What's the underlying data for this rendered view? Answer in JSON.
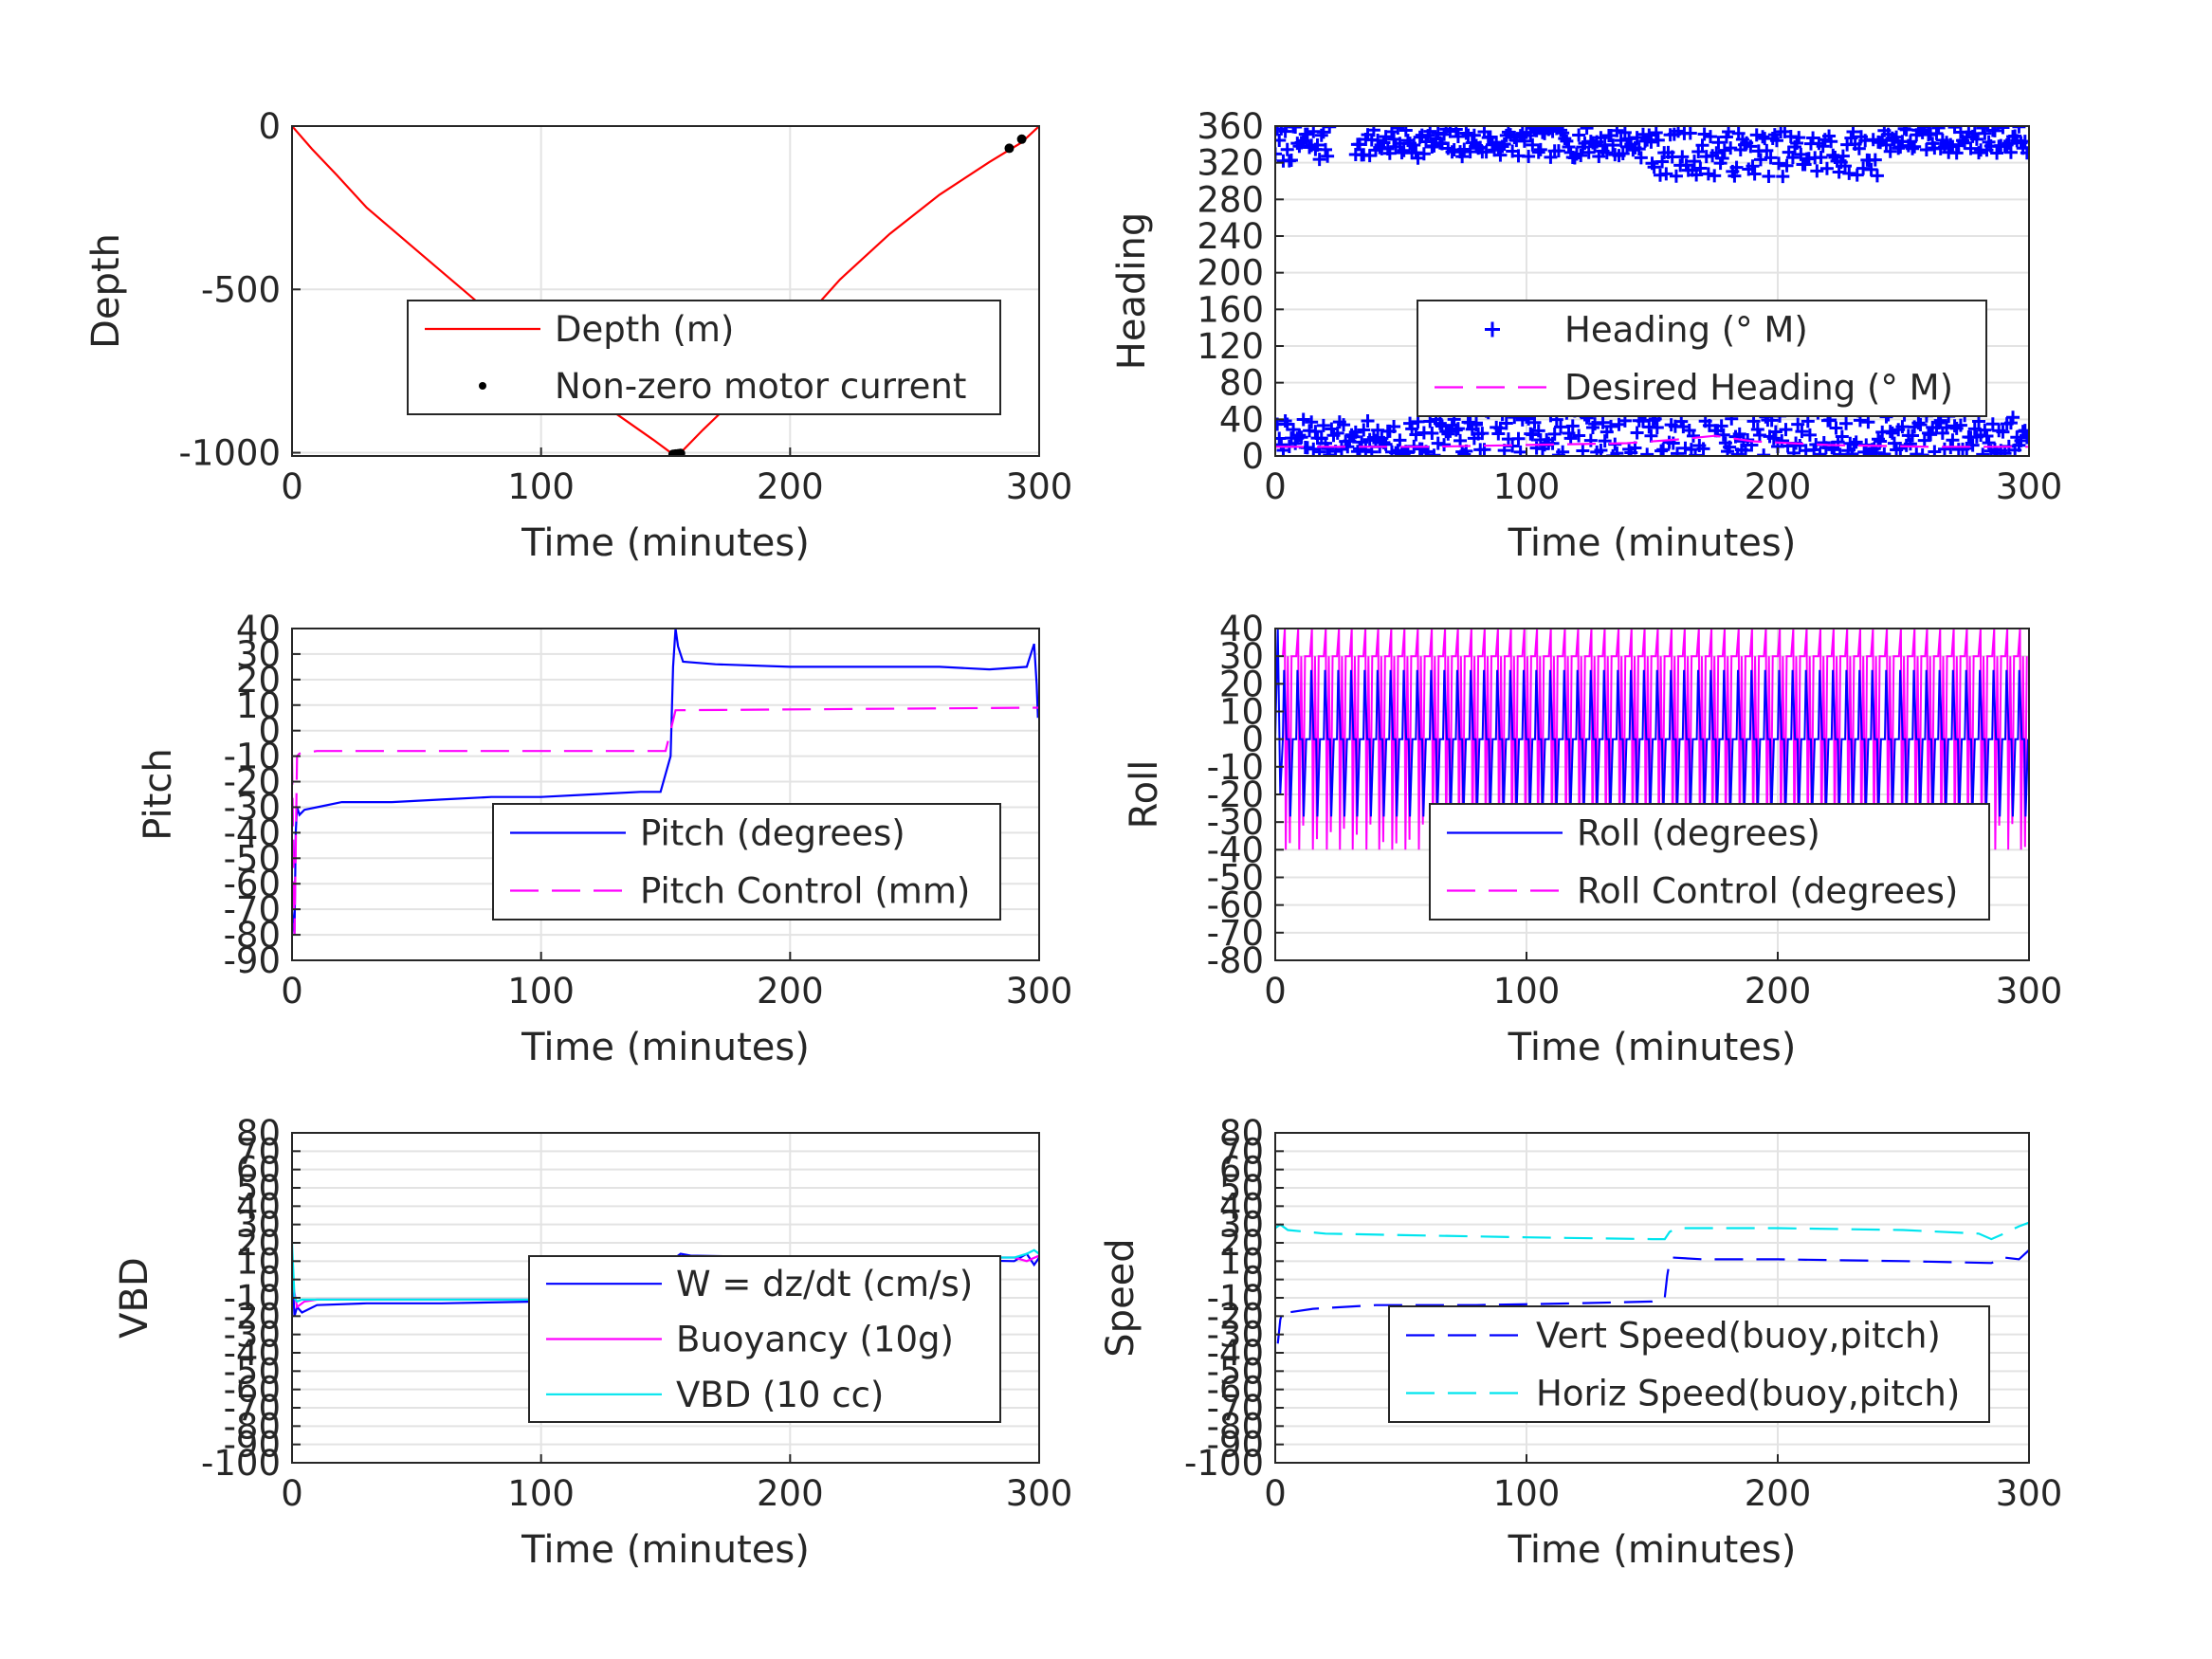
{
  "colors": {
    "red": "#ff0000",
    "blue": "#0000ff",
    "magenta": "#ff00ff",
    "cyan": "#00e5ee",
    "black": "#000000",
    "grid": "#e3e3e3",
    "axis": "#262626"
  },
  "chart_data": [
    {
      "id": "depth",
      "type": "line",
      "xlabel": "Time (minutes)",
      "ylabel": "Depth",
      "xlim": [
        0,
        300
      ],
      "ylim": [
        -1010,
        0
      ],
      "xticks": [
        0,
        100,
        200,
        300
      ],
      "yticks": [
        0,
        -500,
        -1000
      ],
      "yticklabels": [
        "0",
        "-500",
        "-1000"
      ],
      "grid": true,
      "legend_position": "lower-right",
      "series": [
        {
          "name": "Depth (m)",
          "style": "solid",
          "color": "#ff0000",
          "x": [
            0,
            8,
            18,
            30,
            50,
            70,
            90,
            110,
            130,
            145,
            153,
            156,
            165,
            180,
            200,
            220,
            240,
            260,
            280,
            293,
            300
          ],
          "y": [
            0,
            -70,
            -150,
            -250,
            -380,
            -510,
            -640,
            -760,
            -880,
            -960,
            -1005,
            -1000,
            -930,
            -820,
            -640,
            -470,
            -330,
            -210,
            -110,
            -50,
            0
          ]
        },
        {
          "name": "Non-zero motor current",
          "style": "dots",
          "color": "#000000",
          "x": [
            153,
            154,
            155,
            156,
            288,
            293
          ],
          "y": [
            -1005,
            -1004,
            -1003,
            -1002,
            -68,
            -40
          ]
        }
      ]
    },
    {
      "id": "heading",
      "type": "scatter",
      "xlabel": "Time (minutes)",
      "ylabel": "Heading",
      "xlim": [
        0,
        300
      ],
      "ylim": [
        0,
        360
      ],
      "xticks": [
        0,
        100,
        200,
        300
      ],
      "yticks": [
        0,
        40,
        80,
        120,
        160,
        200,
        240,
        280,
        320,
        360
      ],
      "grid": true,
      "legend_position": "center-right",
      "series": [
        {
          "name": "Heading (° M)",
          "style": "plus",
          "color": "#0000ff",
          "bands": [
            {
              "x0": 0,
              "x1": 22,
              "ylo": 320,
              "yhi": 360
            },
            {
              "x0": 32,
              "x1": 150,
              "ylo": 325,
              "yhi": 358
            },
            {
              "x0": 150,
              "x1": 240,
              "ylo": 305,
              "yhi": 355
            },
            {
              "x0": 240,
              "x1": 300,
              "ylo": 330,
              "yhi": 360
            },
            {
              "x0": 0,
              "x1": 80,
              "ylo": 0,
              "yhi": 40
            },
            {
              "x0": 80,
              "x1": 240,
              "ylo": 0,
              "yhi": 60
            },
            {
              "x0": 240,
              "x1": 300,
              "ylo": 0,
              "yhi": 45
            }
          ]
        },
        {
          "name": "Desired Heading (° M)",
          "style": "dashed",
          "color": "#ff00ff",
          "x": [
            0,
            60,
            100,
            140,
            160,
            175,
            190,
            220,
            260,
            300
          ],
          "y": [
            10,
            10,
            12,
            14,
            18,
            22,
            16,
            12,
            10,
            10
          ]
        }
      ]
    },
    {
      "id": "pitch",
      "type": "line",
      "xlabel": "Time (minutes)",
      "ylabel": "Pitch",
      "xlim": [
        0,
        300
      ],
      "ylim": [
        -90,
        40
      ],
      "xticks": [
        0,
        100,
        200,
        300
      ],
      "yticks": [
        40,
        30,
        20,
        10,
        0,
        -10,
        -20,
        -30,
        -40,
        -50,
        -60,
        -70,
        -80,
        -90
      ],
      "grid": true,
      "legend_position": "lower-right",
      "series": [
        {
          "name": "Pitch (degrees)",
          "style": "solid",
          "color": "#0000ff",
          "x": [
            0,
            1,
            1.5,
            2,
            3,
            5,
            10,
            20,
            40,
            60,
            80,
            100,
            120,
            140,
            148,
            152,
            153,
            154,
            155,
            157,
            170,
            200,
            230,
            260,
            280,
            295,
            298,
            299,
            299.5
          ],
          "y": [
            -70,
            -80,
            -40,
            -30,
            -33,
            -31,
            -30,
            -28,
            -28,
            -27,
            -26,
            -26,
            -25,
            -24,
            -24,
            -10,
            25,
            40,
            33,
            27,
            26,
            25,
            25,
            25,
            24,
            25,
            34,
            18,
            5
          ]
        },
        {
          "name": "Pitch Control (mm)",
          "style": "dashed",
          "color": "#ff00ff",
          "x": [
            0,
            1,
            2,
            3,
            10,
            150,
            152,
            154,
            300
          ],
          "y": [
            -10,
            -80,
            -10,
            -9,
            -8,
            -8,
            0,
            8,
            9
          ]
        }
      ]
    },
    {
      "id": "roll",
      "type": "line",
      "xlabel": "Time (minutes)",
      "ylabel": "Roll",
      "xlim": [
        0,
        300
      ],
      "ylim": [
        -80,
        40
      ],
      "xticks": [
        0,
        100,
        200,
        300
      ],
      "yticks": [
        40,
        30,
        20,
        10,
        0,
        -10,
        -20,
        -30,
        -40,
        -50,
        -60,
        -70,
        -80
      ],
      "grid": true,
      "legend_position": "lower-right",
      "series": [
        {
          "name": "Roll (degrees)",
          "style": "solid",
          "color": "#0000ff"
        },
        {
          "name": "Roll Control (degrees)",
          "style": "dashed",
          "color": "#ff00ff"
        }
      ]
    },
    {
      "id": "vbd",
      "type": "line",
      "xlabel": "Time (minutes)",
      "ylabel": "VBD",
      "xlim": [
        0,
        300
      ],
      "ylim": [
        -100,
        80
      ],
      "xticks": [
        0,
        100,
        200,
        300
      ],
      "yticks": [
        80,
        70,
        60,
        50,
        40,
        30,
        20,
        10,
        0,
        -10,
        -20,
        -30,
        -40,
        -50,
        -60,
        -70,
        -80,
        -90,
        -100
      ],
      "grid": true,
      "legend_position": "lower-right",
      "series": [
        {
          "name": "W = dz/dt (cm/s)",
          "style": "solid",
          "color": "#0000ff",
          "x": [
            0,
            1,
            2,
            4,
            10,
            30,
            60,
            100,
            140,
            150,
            152,
            154,
            156,
            160,
            200,
            250,
            290,
            295,
            298,
            300
          ],
          "y": [
            5,
            -20,
            -15,
            -18,
            -14,
            -13,
            -13,
            -12,
            -12,
            -12,
            0,
            12,
            14,
            13,
            12,
            11,
            10,
            14,
            8,
            12
          ]
        },
        {
          "name": "Buoyancy (10g)",
          "style": "solid",
          "color": "#ff00ff",
          "x": [
            0,
            2,
            5,
            10,
            30,
            100,
            150,
            152,
            155,
            200,
            250,
            290,
            295,
            300
          ],
          "y": [
            0,
            -15,
            -12,
            -11,
            -11,
            -11,
            -10,
            0,
            12,
            12,
            12,
            12,
            10,
            13
          ]
        },
        {
          "name": "VBD (10 cc)",
          "style": "solid",
          "color": "#00e5ee",
          "x": [
            0,
            1,
            2,
            4,
            150,
            152,
            155,
            290,
            295,
            298,
            300
          ],
          "y": [
            20,
            -10,
            -12,
            -11,
            -11,
            0,
            12,
            12,
            14,
            16,
            14
          ]
        }
      ]
    },
    {
      "id": "speed",
      "type": "line",
      "xlabel": "Time (minutes)",
      "ylabel": "Speed",
      "xlim": [
        0,
        300
      ],
      "ylim": [
        -100,
        80
      ],
      "xticks": [
        0,
        100,
        200,
        300
      ],
      "yticks": [
        80,
        70,
        60,
        50,
        40,
        30,
        20,
        10,
        0,
        -10,
        -20,
        -30,
        -40,
        -50,
        -60,
        -70,
        -80,
        -90,
        -100
      ],
      "grid": true,
      "legend_position": "lower-right",
      "series": [
        {
          "name": "Vert Speed(buoy,pitch)",
          "style": "dashed",
          "color": "#0000ff",
          "x": [
            1,
            2,
            3,
            5,
            15,
            40,
            80,
            120,
            150,
            155,
            156,
            157,
            158,
            170,
            200,
            250,
            285,
            290,
            296,
            300
          ],
          "y": [
            -35,
            -22,
            -17,
            -18,
            -16,
            -14,
            -14,
            -13,
            -12,
            -10,
            2,
            10,
            12,
            11,
            11,
            10,
            9,
            12,
            11,
            16
          ]
        },
        {
          "name": "Horiz Speed(buoy,pitch)",
          "style": "dashed",
          "color": "#00e5ee",
          "x": [
            0,
            2,
            5,
            20,
            60,
            100,
            150,
            155,
            157,
            160,
            200,
            250,
            280,
            285,
            290,
            296,
            300
          ],
          "y": [
            28,
            30,
            27,
            25,
            24,
            23,
            22,
            22,
            26,
            28,
            28,
            27,
            25,
            22,
            25,
            29,
            31
          ]
        }
      ]
    }
  ]
}
